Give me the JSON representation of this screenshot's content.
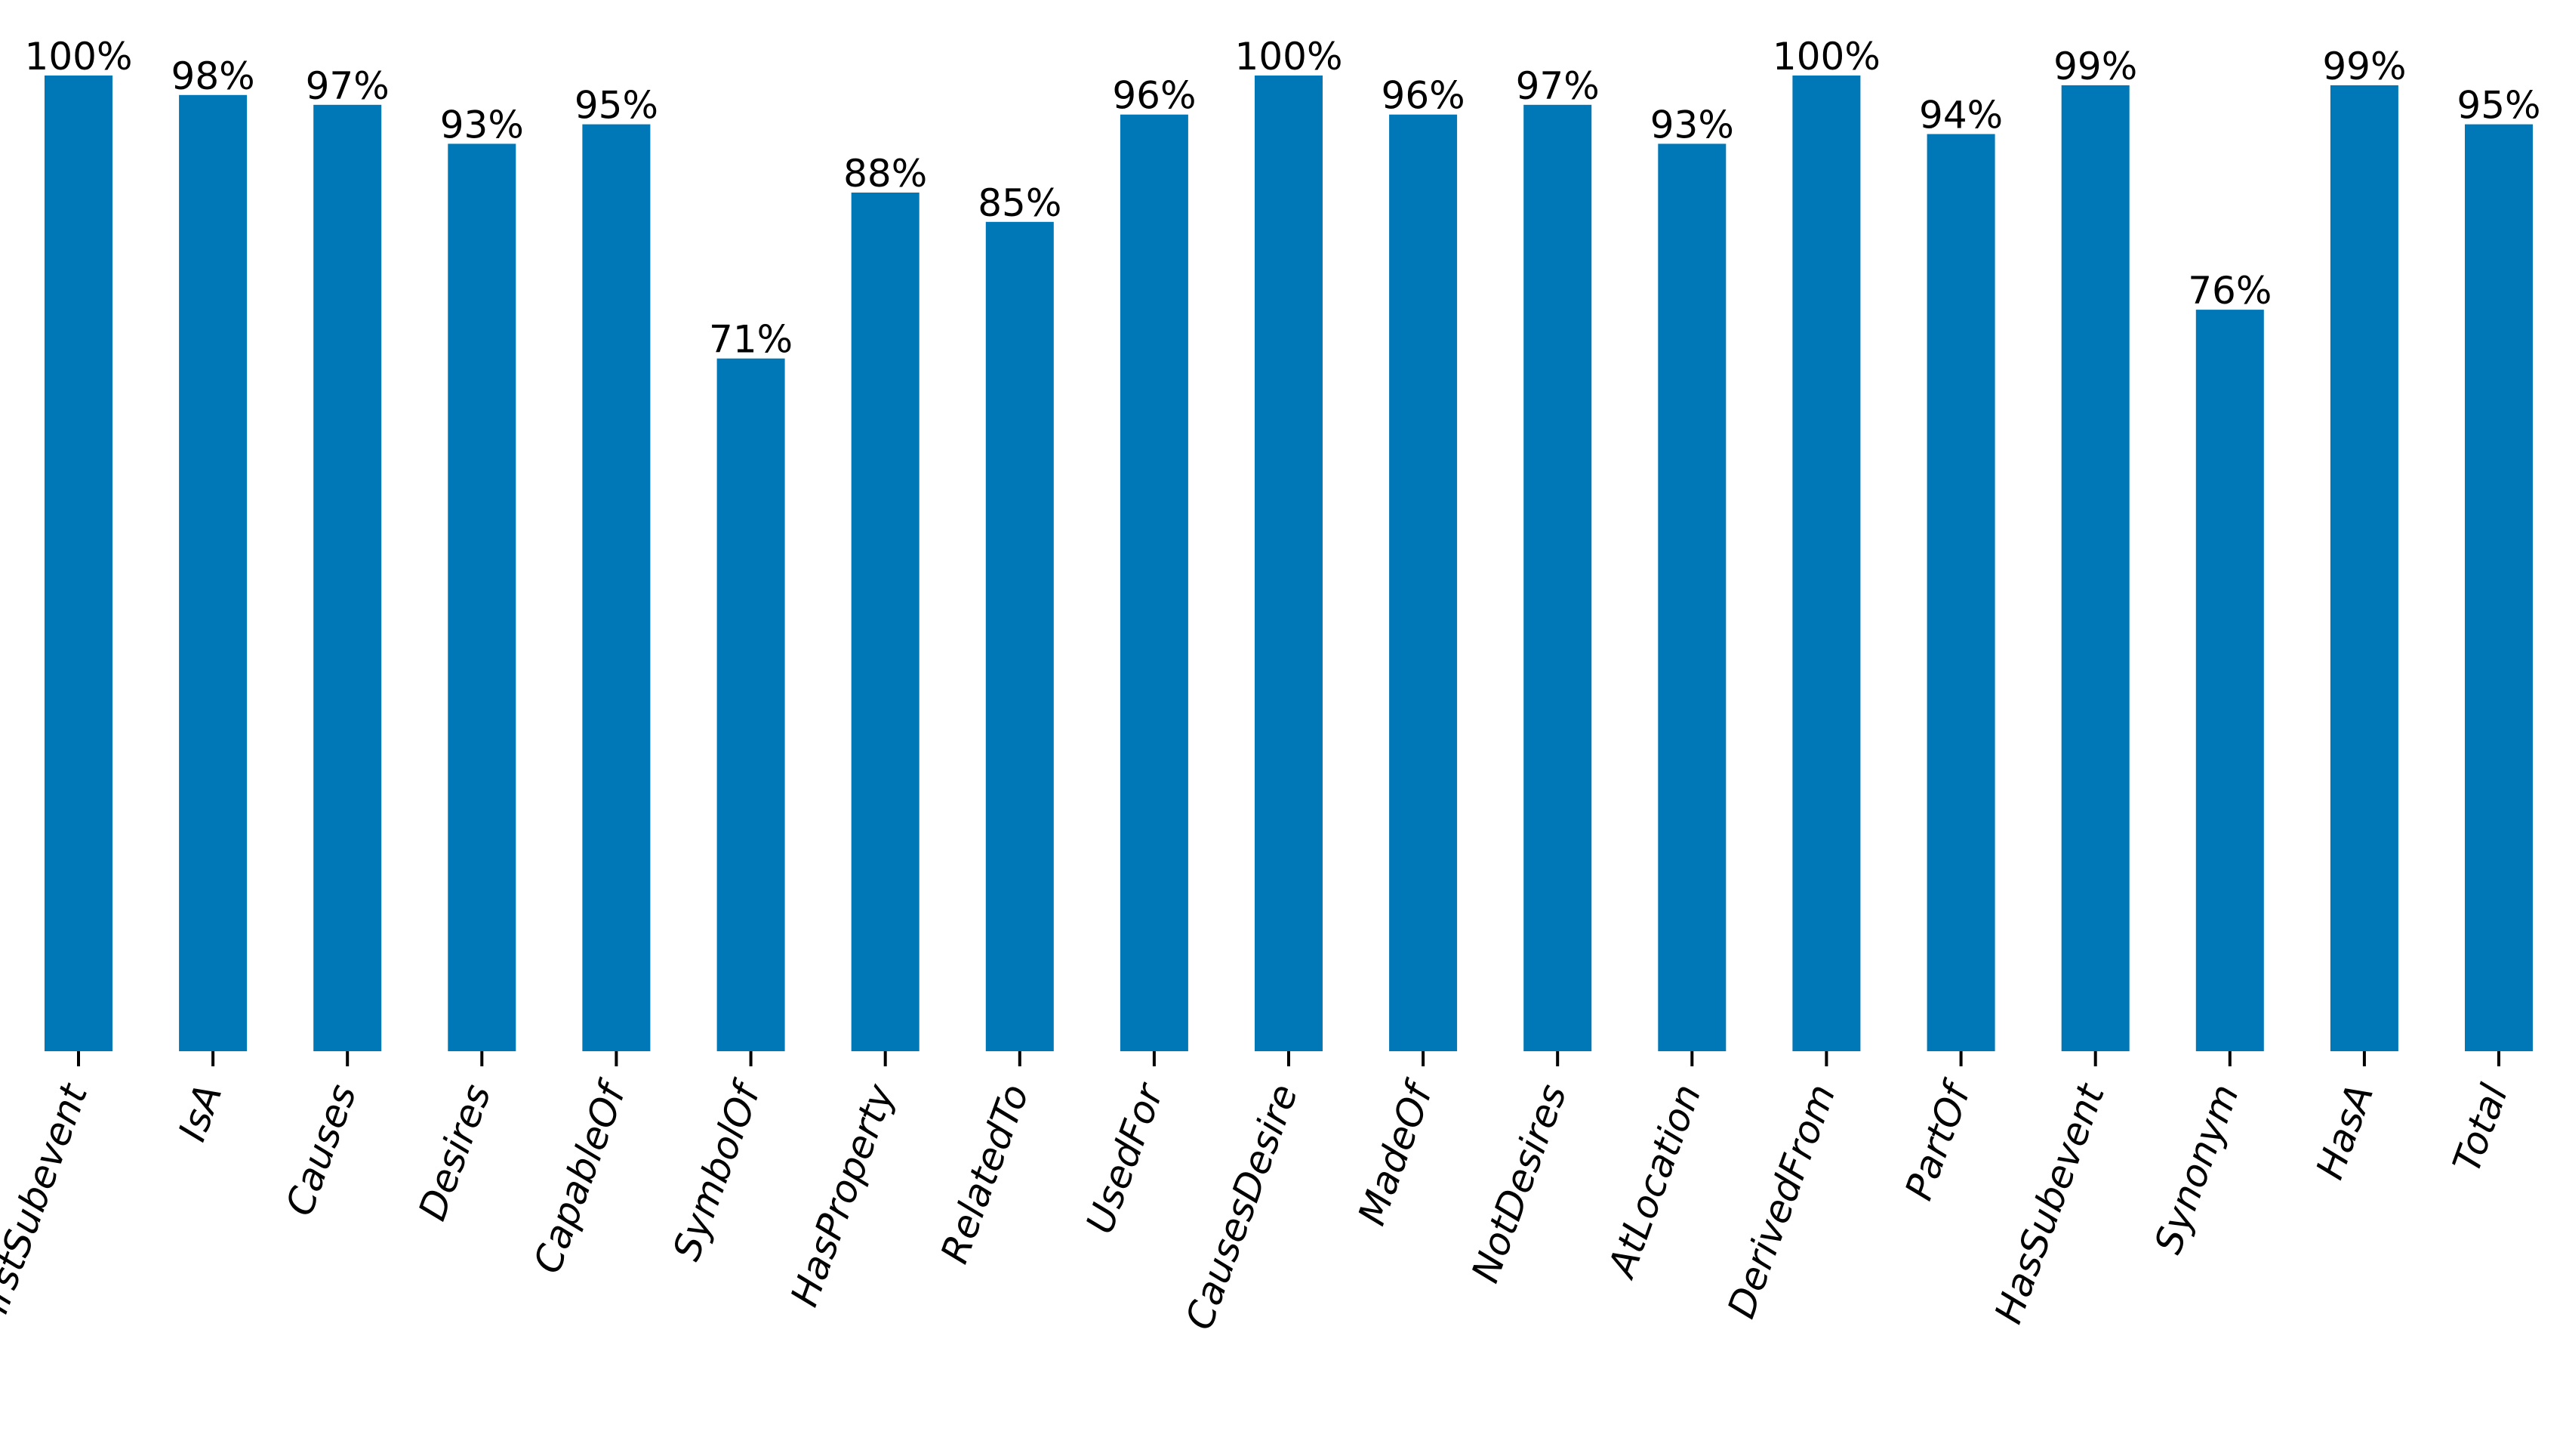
{
  "chart_data": {
    "type": "bar",
    "title": "",
    "xlabel": "",
    "ylabel": "",
    "ylim": [
      0,
      100
    ],
    "grid": false,
    "bar_color": "#0077B6",
    "categories": [
      "HasFirstSubevent",
      "IsA",
      "Causes",
      "Desires",
      "CapableOf",
      "SymbolOf",
      "HasProperty",
      "RelatedTo",
      "UsedFor",
      "CausesDesire",
      "MadeOf",
      "NotDesires",
      "AtLocation",
      "DerivedFrom",
      "PartOf",
      "HasSubevent",
      "Synonym",
      "HasA",
      "Total"
    ],
    "values": [
      100,
      98,
      97,
      93,
      95,
      71,
      88,
      85,
      96,
      100,
      96,
      97,
      93,
      100,
      94,
      99,
      76,
      99,
      95
    ],
    "value_labels": [
      "100%",
      "98%",
      "97%",
      "93%",
      "95%",
      "71%",
      "88%",
      "85%",
      "96%",
      "100%",
      "96%",
      "97%",
      "93%",
      "100%",
      "94%",
      "99%",
      "76%",
      "99%",
      "95%"
    ]
  }
}
